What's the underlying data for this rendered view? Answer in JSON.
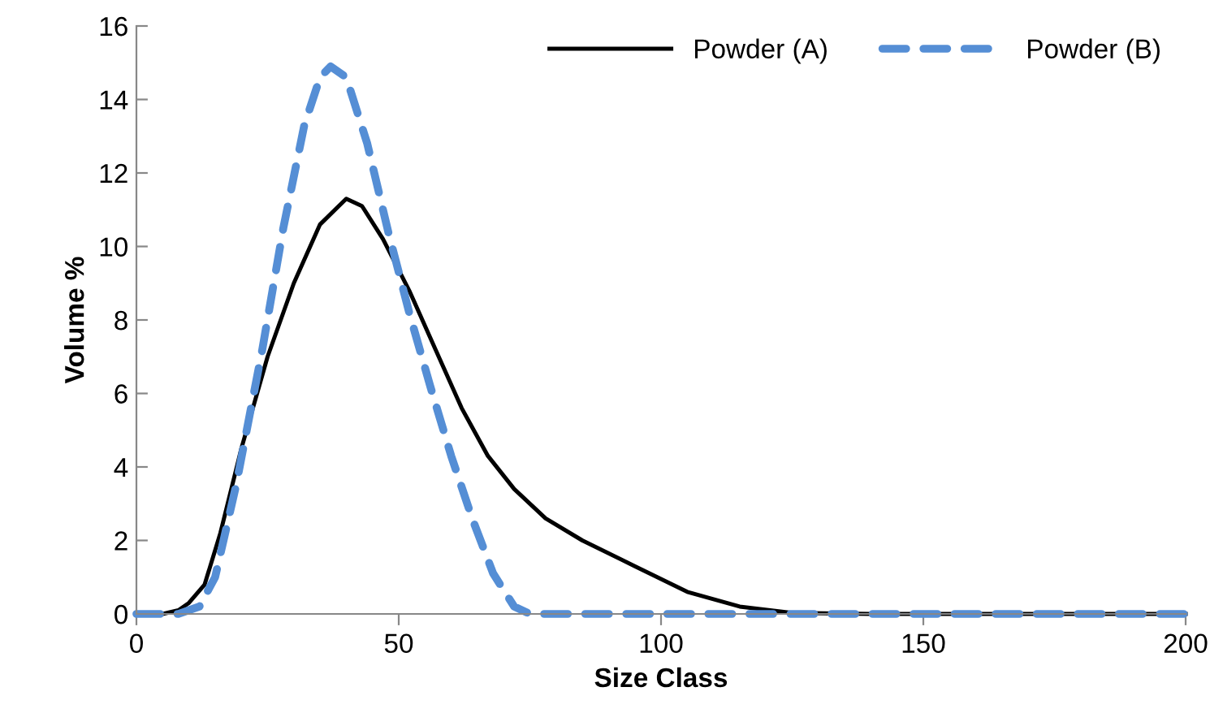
{
  "chart_data": {
    "type": "line",
    "xlabel": "Size Class",
    "ylabel": "Volume %",
    "xlim": [
      0,
      200
    ],
    "xticks": [
      0,
      50,
      100,
      150,
      200
    ],
    "ylim": [
      0,
      16
    ],
    "yticks": [
      0,
      2,
      4,
      6,
      8,
      10,
      12,
      14,
      16
    ],
    "grid": false,
    "legend": "top right",
    "series": [
      {
        "name": "Powder (A)",
        "color": "#000000",
        "line_style": "solid",
        "x": [
          0,
          5,
          8,
          10,
          13,
          16,
          20,
          25,
          30,
          35,
          40,
          43,
          47,
          52,
          57,
          62,
          67,
          72,
          78,
          85,
          95,
          105,
          115,
          125,
          140,
          200
        ],
        "values": [
          0,
          0,
          0.1,
          0.3,
          0.8,
          2.2,
          4.5,
          7,
          9,
          10.6,
          11.3,
          11.1,
          10.2,
          8.8,
          7.2,
          5.6,
          4.3,
          3.4,
          2.6,
          2.0,
          1.3,
          0.6,
          0.2,
          0.03,
          0,
          0
        ]
      },
      {
        "name": "Powder (B)",
        "color": "#558ed5",
        "line_style": "dashed",
        "x": [
          0,
          8,
          12,
          15,
          19,
          24,
          28,
          32,
          35,
          37,
          40,
          44,
          48,
          52,
          56,
          60,
          64,
          68,
          72,
          75,
          200
        ],
        "values": [
          0,
          0,
          0.2,
          1,
          3.5,
          7.2,
          10.5,
          13.3,
          14.6,
          14.9,
          14.6,
          12.8,
          10.4,
          8.2,
          6.2,
          4.3,
          2.6,
          1.1,
          0.2,
          0,
          0
        ]
      }
    ]
  }
}
